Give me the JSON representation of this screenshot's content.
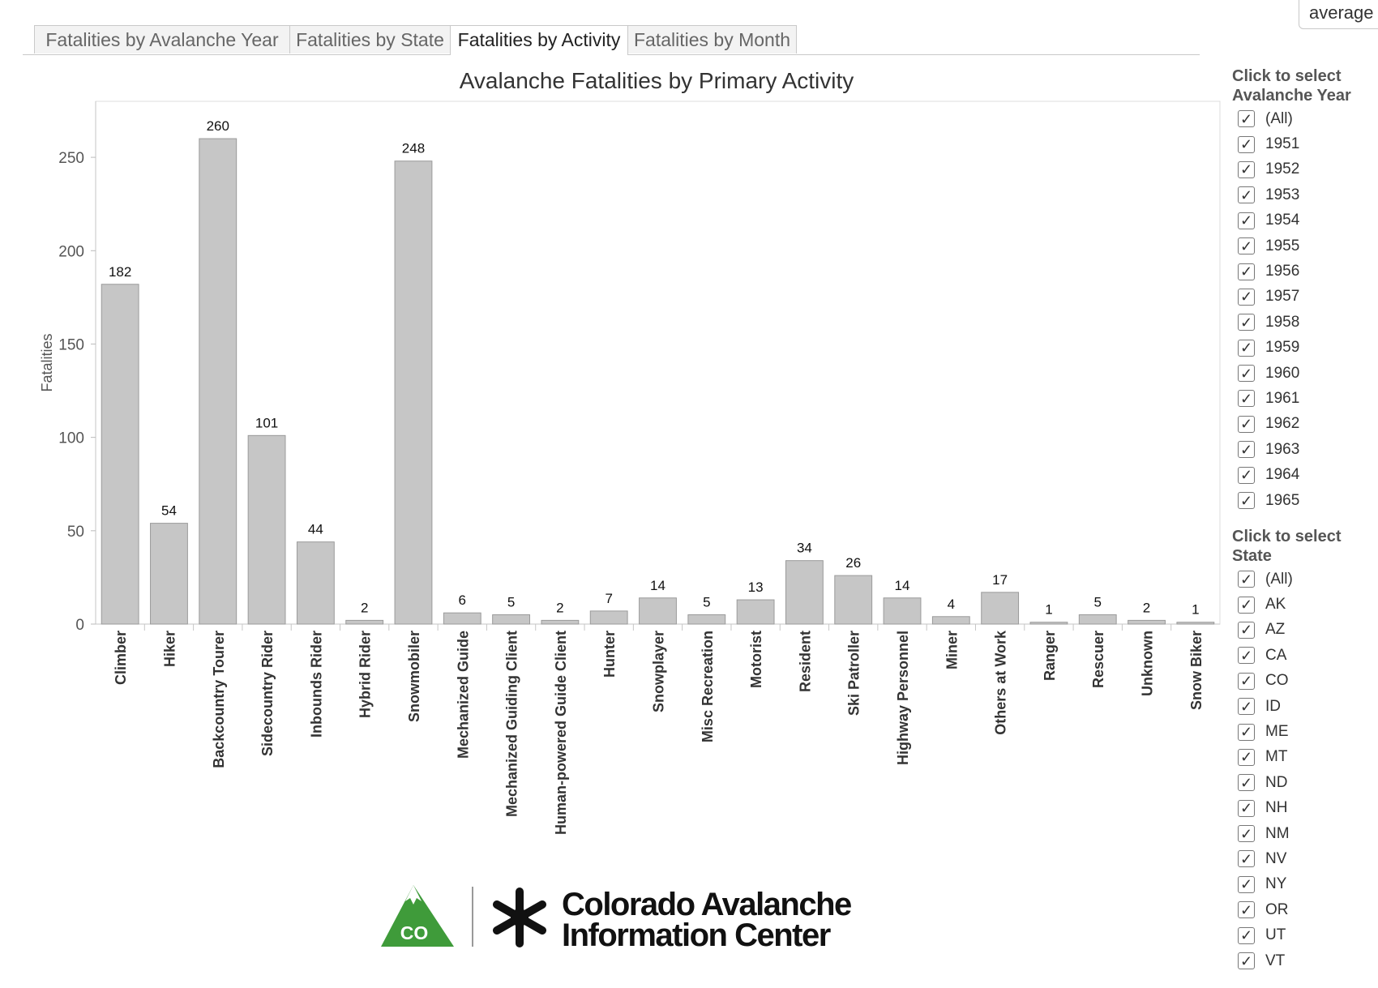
{
  "top_select": {
    "value": "average"
  },
  "tabs": [
    {
      "label": "Fatalities by Avalanche Year",
      "active": false
    },
    {
      "label": "Fatalities by State",
      "active": false
    },
    {
      "label": "Fatalities by Activity",
      "active": true
    },
    {
      "label": "Fatalities by Month",
      "active": false
    }
  ],
  "chart_data": {
    "type": "bar",
    "title": "Avalanche Fatalities by Primary Activity",
    "ylabel": "Fatalities",
    "xlabel": "",
    "ylim": [
      0,
      280
    ],
    "yticks": [
      0,
      50,
      100,
      150,
      200,
      250
    ],
    "categories": [
      "Climber",
      "Hiker",
      "Backcountry Tourer",
      "Sidecountry Rider",
      "Inbounds Rider",
      "Hybrid Rider",
      "Snowmobiler",
      "Mechanized Guide",
      "Mechanized Guiding Client",
      "Human-powered Guide Client",
      "Hunter",
      "Snowplayer",
      "Misc Recreation",
      "Motorist",
      "Resident",
      "Ski Patroller",
      "Highway Personnel",
      "Miner",
      "Others at Work",
      "Ranger",
      "Rescuer",
      "Unknown",
      "Snow Biker"
    ],
    "values": [
      182,
      54,
      260,
      101,
      44,
      2,
      248,
      6,
      5,
      2,
      7,
      14,
      5,
      13,
      34,
      26,
      14,
      4,
      17,
      1,
      5,
      2,
      1
    ],
    "bar_color": "#c6c6c6",
    "grid": false,
    "data_labels": true
  },
  "filters": {
    "year": {
      "title_line1": "Click to select",
      "title_line2": "Avalanche Year",
      "items": [
        "(All)",
        "1951",
        "1952",
        "1953",
        "1954",
        "1955",
        "1956",
        "1957",
        "1958",
        "1959",
        "1960",
        "1961",
        "1962",
        "1963",
        "1964",
        "1965"
      ]
    },
    "state": {
      "title_line1": "Click to select",
      "title_line2": "State",
      "items": [
        "(All)",
        "AK",
        "AZ",
        "CA",
        "CO",
        "ID",
        "ME",
        "MT",
        "ND",
        "NH",
        "NM",
        "NV",
        "NY",
        "OR",
        "UT",
        "VT"
      ]
    },
    "check_glyph": "✓"
  },
  "logo": {
    "badge_text": "CO",
    "line1": "Colorado Avalanche",
    "line2": "Information Center",
    "colors": {
      "green": "#3f9b3a",
      "dark": "#111111"
    }
  }
}
